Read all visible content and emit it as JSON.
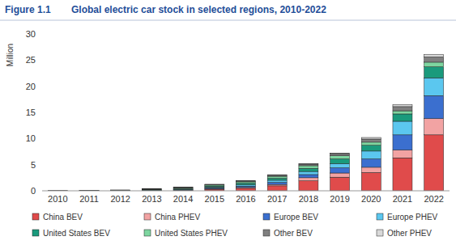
{
  "chart_data": {
    "type": "bar",
    "stacked": true,
    "annotations": [
      "Figure 1.1"
    ],
    "title": "Global electric car stock in selected regions, 2010-2022",
    "y_label": "Million",
    "categories": [
      "2010",
      "2011",
      "2012",
      "2013",
      "2014",
      "2015",
      "2016",
      "2017",
      "2018",
      "2019",
      "2020",
      "2021",
      "2022"
    ],
    "ylim": [
      0,
      30
    ],
    "yticks": [
      0,
      5,
      10,
      15,
      20,
      25,
      30
    ],
    "grid": false,
    "legend": "bottom",
    "series": [
      {
        "name": "China BEV",
        "color": "#e04b4b",
        "values": [
          0.002,
          0.005,
          0.01,
          0.02,
          0.08,
          0.3,
          0.48,
          0.95,
          1.9,
          2.6,
          3.5,
          6.3,
          10.7
        ]
      },
      {
        "name": "China PHEV",
        "color": "#f2a3a3",
        "values": [
          0,
          0,
          0,
          0.01,
          0.03,
          0.08,
          0.16,
          0.27,
          0.6,
          0.8,
          1.0,
          1.5,
          3.1
        ]
      },
      {
        "name": "Europe BEV",
        "color": "#3b6fcf",
        "values": [
          0.001,
          0.008,
          0.02,
          0.05,
          0.1,
          0.18,
          0.26,
          0.4,
          0.6,
          1.0,
          1.6,
          2.9,
          4.4
        ]
      },
      {
        "name": "Europe PHEV",
        "color": "#5bc7ef",
        "values": [
          0,
          0.002,
          0.01,
          0.03,
          0.06,
          0.14,
          0.26,
          0.4,
          0.6,
          0.8,
          1.5,
          2.6,
          3.4
        ]
      },
      {
        "name": "United States BEV",
        "color": "#1a9a7c",
        "values": [
          0.001,
          0.01,
          0.03,
          0.08,
          0.14,
          0.21,
          0.3,
          0.38,
          0.6,
          0.9,
          1.1,
          1.4,
          2.1
        ]
      },
      {
        "name": "United States PHEV",
        "color": "#7ed6a0",
        "values": [
          0,
          0.008,
          0.04,
          0.1,
          0.15,
          0.19,
          0.26,
          0.37,
          0.5,
          0.6,
          0.6,
          0.6,
          0.9
        ]
      },
      {
        "name": "Other BEV",
        "color": "#808080",
        "values": [
          0.013,
          0.01,
          0.03,
          0.05,
          0.08,
          0.1,
          0.15,
          0.2,
          0.3,
          0.4,
          0.6,
          0.8,
          1.0
        ]
      },
      {
        "name": "Other PHEV",
        "color": "#d9d9d9",
        "values": [
          0,
          0.001,
          0.01,
          0.02,
          0.03,
          0.05,
          0.07,
          0.1,
          0.1,
          0.1,
          0.3,
          0.4,
          0.5
        ]
      }
    ]
  }
}
